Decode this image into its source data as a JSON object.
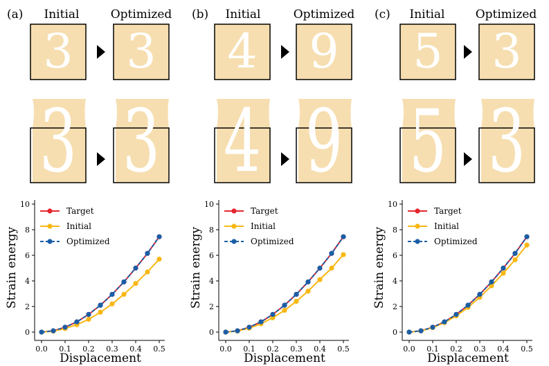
{
  "colors": {
    "target": "#e5252f",
    "initial": "#f9b714",
    "optimized": "#1b5ea6",
    "material": "#f6deb0",
    "void": "#ffffff",
    "frame": "#000000"
  },
  "panels": [
    {
      "label": "(a)",
      "initial_title": "Initial",
      "optimized_title": "Optimized",
      "initial_digit": "3",
      "optimized_digit": "3",
      "chart_ref": 0
    },
    {
      "label": "(b)",
      "initial_title": "Initial",
      "optimized_title": "Optimized",
      "initial_digit": "4",
      "optimized_digit": "9",
      "chart_ref": 1
    },
    {
      "label": "(c)",
      "initial_title": "Initial",
      "optimized_title": "Optimized",
      "initial_digit": "5",
      "optimized_digit": "3",
      "chart_ref": 2
    }
  ],
  "chart_data": [
    {
      "type": "line",
      "panel": "(a)",
      "xlabel": "Displacement",
      "ylabel": "Strain energy",
      "xlim": [
        0.0,
        0.5
      ],
      "ylim": [
        0,
        10
      ],
      "xticks": [
        "0.0",
        "0.1",
        "0.2",
        "0.3",
        "0.4",
        "0.5"
      ],
      "yticks": [
        "0",
        "2",
        "4",
        "6",
        "8",
        "10"
      ],
      "legend": {
        "position": "top-left",
        "entries": [
          "Target",
          "Initial",
          "Optimized"
        ]
      },
      "x": [
        0.0,
        0.05,
        0.1,
        0.15,
        0.2,
        0.25,
        0.3,
        0.35,
        0.4,
        0.45,
        0.5
      ],
      "series": [
        {
          "name": "Target",
          "style": "solid",
          "values": [
            0.0,
            0.1,
            0.38,
            0.8,
            1.38,
            2.1,
            2.95,
            3.92,
            5.0,
            6.15,
            7.45
          ]
        },
        {
          "name": "Initial",
          "style": "solid",
          "values": [
            0.0,
            0.07,
            0.28,
            0.58,
            1.0,
            1.55,
            2.2,
            2.95,
            3.8,
            4.7,
            5.7
          ]
        },
        {
          "name": "Optimized",
          "style": "dashed",
          "values": [
            0.0,
            0.1,
            0.38,
            0.8,
            1.38,
            2.1,
            2.95,
            3.92,
            5.0,
            6.15,
            7.45
          ]
        }
      ]
    },
    {
      "type": "line",
      "panel": "(b)",
      "xlabel": "Displacement",
      "ylabel": "Strain energy",
      "xlim": [
        0.0,
        0.5
      ],
      "ylim": [
        0,
        10
      ],
      "xticks": [
        "0.0",
        "0.1",
        "0.2",
        "0.3",
        "0.4",
        "0.5"
      ],
      "yticks": [
        "0",
        "2",
        "4",
        "6",
        "8",
        "10"
      ],
      "legend": {
        "position": "top-left",
        "entries": [
          "Target",
          "Initial",
          "Optimized"
        ]
      },
      "x": [
        0.0,
        0.05,
        0.1,
        0.15,
        0.2,
        0.25,
        0.3,
        0.35,
        0.4,
        0.45,
        0.5
      ],
      "series": [
        {
          "name": "Target",
          "style": "solid",
          "values": [
            0.0,
            0.1,
            0.38,
            0.8,
            1.38,
            2.1,
            2.95,
            3.92,
            5.0,
            6.15,
            7.45
          ]
        },
        {
          "name": "Initial",
          "style": "solid",
          "values": [
            0.0,
            0.08,
            0.31,
            0.65,
            1.12,
            1.7,
            2.4,
            3.2,
            4.1,
            5.0,
            6.05
          ]
        },
        {
          "name": "Optimized",
          "style": "dashed",
          "values": [
            0.0,
            0.1,
            0.38,
            0.8,
            1.38,
            2.1,
            2.95,
            3.92,
            5.0,
            6.15,
            7.45
          ]
        }
      ]
    },
    {
      "type": "line",
      "panel": "(c)",
      "xlabel": "Displacement",
      "ylabel": "Strain energy",
      "xlim": [
        0.0,
        0.5
      ],
      "ylim": [
        0,
        10
      ],
      "xticks": [
        "0.0",
        "0.1",
        "0.2",
        "0.3",
        "0.4",
        "0.5"
      ],
      "yticks": [
        "0",
        "2",
        "4",
        "6",
        "8",
        "10"
      ],
      "legend": {
        "position": "top-left",
        "entries": [
          "Target",
          "Initial",
          "Optimized"
        ]
      },
      "x": [
        0.0,
        0.05,
        0.1,
        0.15,
        0.2,
        0.25,
        0.3,
        0.35,
        0.4,
        0.45,
        0.5
      ],
      "series": [
        {
          "name": "Target",
          "style": "solid",
          "values": [
            0.0,
            0.1,
            0.38,
            0.8,
            1.38,
            2.1,
            2.95,
            3.92,
            5.0,
            6.15,
            7.45
          ]
        },
        {
          "name": "Initial",
          "style": "solid",
          "values": [
            0.0,
            0.09,
            0.35,
            0.74,
            1.27,
            1.93,
            2.72,
            3.62,
            4.6,
            5.65,
            6.8
          ]
        },
        {
          "name": "Optimized",
          "style": "dashed",
          "values": [
            0.0,
            0.1,
            0.38,
            0.8,
            1.38,
            2.1,
            2.95,
            3.92,
            5.0,
            6.15,
            7.45
          ]
        }
      ]
    }
  ]
}
